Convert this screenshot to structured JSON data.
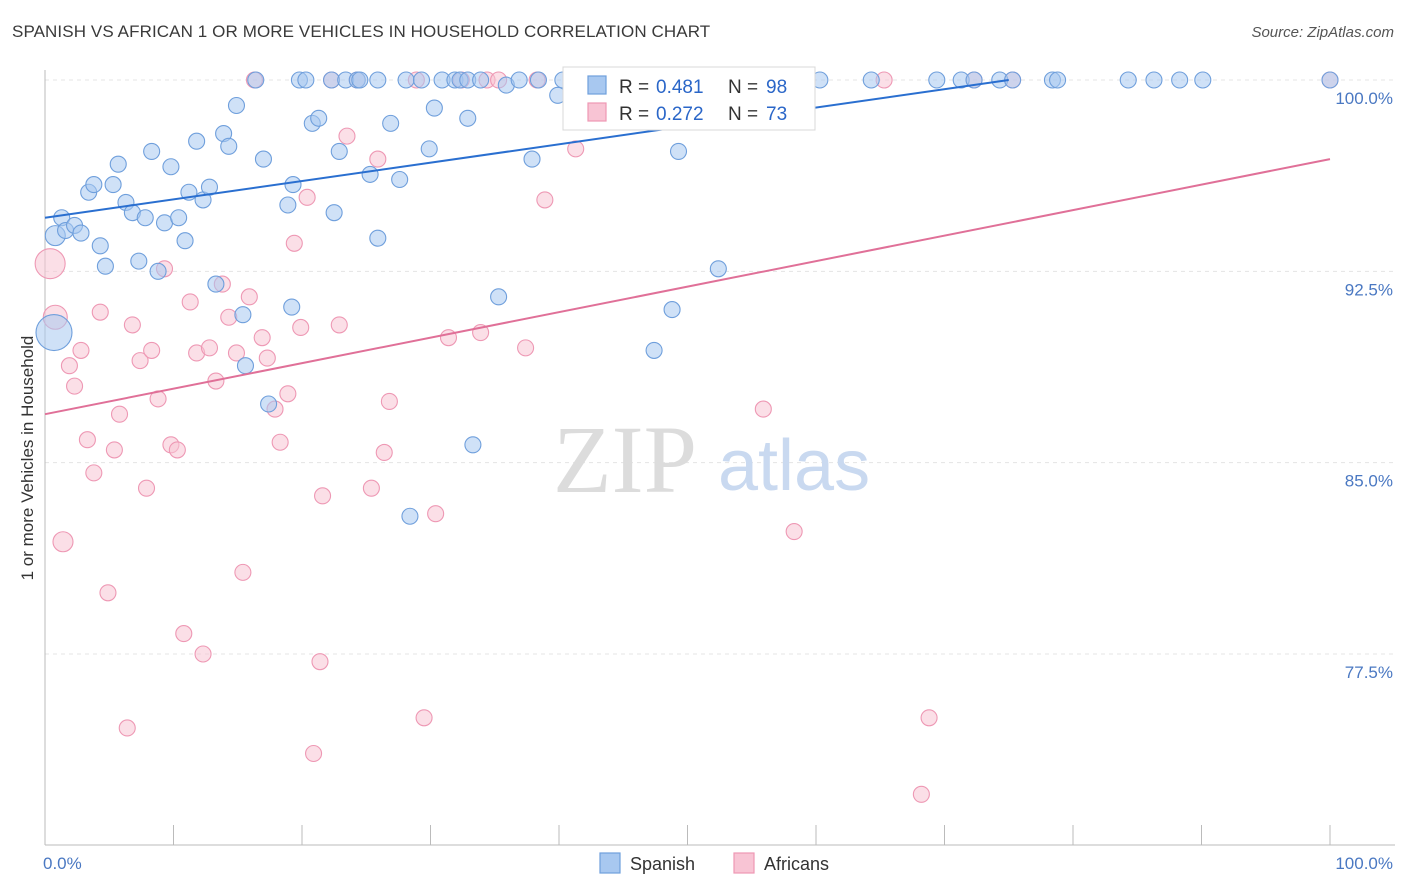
{
  "title": "SPANISH VS AFRICAN 1 OR MORE VEHICLES IN HOUSEHOLD CORRELATION CHART",
  "source": "Source: ZipAtlas.com",
  "watermark": {
    "zip": "ZIP",
    "atlas": "atlas"
  },
  "legend": {
    "spanish": {
      "r_label": "R =",
      "r_value": "0.481",
      "n_label": "N =",
      "n_value": "98"
    },
    "africans": {
      "r_label": "R =",
      "r_value": "0.272",
      "n_label": "N =",
      "n_value": "73"
    }
  },
  "bottom_legend": {
    "spanish": "Spanish",
    "africans": "Africans"
  },
  "colors": {
    "spanish_fill": "#a8c8f0",
    "spanish_stroke": "#6f9fdc",
    "spanish_line": "#2a6fd0",
    "africans_fill": "#f8c4d4",
    "africans_stroke": "#ee98b4",
    "africans_line": "#e07098",
    "grid": "#e4e4e4",
    "axis": "#bbbbbb",
    "tick_text": "#4a78c2"
  },
  "chart_data": {
    "type": "scatter",
    "title": "SPANISH VS AFRICAN 1 OR MORE VEHICLES IN HOUSEHOLD CORRELATION CHART",
    "xlabel": "",
    "ylabel": "1 or more Vehicles in Household",
    "xlim": [
      0,
      100
    ],
    "ylim": [
      70.5,
      101
    ],
    "x_tick_labels": [
      "0.0%",
      "100.0%"
    ],
    "y_ticks": [
      100,
      92.5,
      85,
      77.5
    ],
    "y_tick_labels": [
      "100.0%",
      "92.5%",
      "85.0%",
      "77.5%"
    ],
    "grid": true,
    "legend_position": "top-center",
    "series": [
      {
        "name": "Spanish",
        "r": 0.481,
        "n": 98,
        "trend": {
          "x": [
            0,
            75
          ],
          "y": [
            94.6,
            100.0
          ]
        },
        "points": [
          {
            "x": 0.7,
            "y": 90.1,
            "s": 18
          },
          {
            "x": 0.8,
            "y": 93.9,
            "s": 10
          },
          {
            "x": 1.3,
            "y": 94.6,
            "s": 8
          },
          {
            "x": 1.6,
            "y": 94.1,
            "s": 8
          },
          {
            "x": 2.3,
            "y": 94.3,
            "s": 8
          },
          {
            "x": 2.8,
            "y": 94.0,
            "s": 8
          },
          {
            "x": 3.4,
            "y": 95.6,
            "s": 8
          },
          {
            "x": 3.8,
            "y": 95.9,
            "s": 8
          },
          {
            "x": 4.3,
            "y": 93.5,
            "s": 8
          },
          {
            "x": 4.7,
            "y": 92.7,
            "s": 8
          },
          {
            "x": 5.3,
            "y": 95.9,
            "s": 8
          },
          {
            "x": 5.7,
            "y": 96.7,
            "s": 8
          },
          {
            "x": 6.3,
            "y": 95.2,
            "s": 8
          },
          {
            "x": 6.8,
            "y": 94.8,
            "s": 8
          },
          {
            "x": 7.3,
            "y": 92.9,
            "s": 8
          },
          {
            "x": 7.8,
            "y": 94.6,
            "s": 8
          },
          {
            "x": 8.3,
            "y": 97.2,
            "s": 8
          },
          {
            "x": 8.8,
            "y": 92.5,
            "s": 8
          },
          {
            "x": 9.3,
            "y": 94.4,
            "s": 8
          },
          {
            "x": 9.8,
            "y": 96.6,
            "s": 8
          },
          {
            "x": 10.4,
            "y": 94.6,
            "s": 8
          },
          {
            "x": 10.9,
            "y": 93.7,
            "s": 8
          },
          {
            "x": 11.2,
            "y": 95.6,
            "s": 8
          },
          {
            "x": 11.8,
            "y": 97.6,
            "s": 8
          },
          {
            "x": 12.3,
            "y": 95.3,
            "s": 8
          },
          {
            "x": 12.8,
            "y": 95.8,
            "s": 8
          },
          {
            "x": 13.3,
            "y": 92.0,
            "s": 8
          },
          {
            "x": 13.9,
            "y": 97.9,
            "s": 8
          },
          {
            "x": 14.3,
            "y": 97.4,
            "s": 8
          },
          {
            "x": 14.9,
            "y": 99.0,
            "s": 8
          },
          {
            "x": 15.4,
            "y": 90.8,
            "s": 8
          },
          {
            "x": 15.6,
            "y": 88.8,
            "s": 8
          },
          {
            "x": 16.4,
            "y": 100,
            "s": 8
          },
          {
            "x": 17.0,
            "y": 96.9,
            "s": 8
          },
          {
            "x": 17.4,
            "y": 87.3,
            "s": 8
          },
          {
            "x": 18.9,
            "y": 95.1,
            "s": 8
          },
          {
            "x": 19.3,
            "y": 95.9,
            "s": 8
          },
          {
            "x": 19.2,
            "y": 91.1,
            "s": 8
          },
          {
            "x": 19.8,
            "y": 100,
            "s": 8
          },
          {
            "x": 20.3,
            "y": 100,
            "s": 8
          },
          {
            "x": 20.8,
            "y": 98.3,
            "s": 8
          },
          {
            "x": 21.3,
            "y": 98.5,
            "s": 8
          },
          {
            "x": 22.3,
            "y": 100,
            "s": 8
          },
          {
            "x": 22.5,
            "y": 94.8,
            "s": 8
          },
          {
            "x": 22.9,
            "y": 97.2,
            "s": 8
          },
          {
            "x": 23.4,
            "y": 100,
            "s": 8
          },
          {
            "x": 24.3,
            "y": 100,
            "s": 8
          },
          {
            "x": 24.5,
            "y": 100,
            "s": 8
          },
          {
            "x": 25.3,
            "y": 96.3,
            "s": 8
          },
          {
            "x": 25.9,
            "y": 100,
            "s": 8
          },
          {
            "x": 25.9,
            "y": 93.8,
            "s": 8
          },
          {
            "x": 26.9,
            "y": 98.3,
            "s": 8
          },
          {
            "x": 27.6,
            "y": 96.1,
            "s": 8
          },
          {
            "x": 28.1,
            "y": 100,
            "s": 8
          },
          {
            "x": 28.4,
            "y": 82.9,
            "s": 8
          },
          {
            "x": 29.3,
            "y": 100,
            "s": 8
          },
          {
            "x": 29.9,
            "y": 97.3,
            "s": 8
          },
          {
            "x": 30.3,
            "y": 98.9,
            "s": 8
          },
          {
            "x": 30.9,
            "y": 100,
            "s": 8
          },
          {
            "x": 31.9,
            "y": 100,
            "s": 8
          },
          {
            "x": 32.3,
            "y": 100,
            "s": 8
          },
          {
            "x": 32.9,
            "y": 98.5,
            "s": 8
          },
          {
            "x": 32.9,
            "y": 100,
            "s": 8
          },
          {
            "x": 33.3,
            "y": 85.7,
            "s": 8
          },
          {
            "x": 33.9,
            "y": 100,
            "s": 8
          },
          {
            "x": 35.3,
            "y": 91.5,
            "s": 8
          },
          {
            "x": 35.9,
            "y": 99.8,
            "s": 8
          },
          {
            "x": 36.9,
            "y": 100,
            "s": 8
          },
          {
            "x": 37.9,
            "y": 96.9,
            "s": 8
          },
          {
            "x": 38.4,
            "y": 100,
            "s": 8
          },
          {
            "x": 39.9,
            "y": 99.4,
            "s": 8
          },
          {
            "x": 40.3,
            "y": 100,
            "s": 8
          },
          {
            "x": 41.9,
            "y": 100,
            "s": 8
          },
          {
            "x": 43.9,
            "y": 100,
            "s": 8
          },
          {
            "x": 46.3,
            "y": 100,
            "s": 8
          },
          {
            "x": 47.4,
            "y": 89.4,
            "s": 8
          },
          {
            "x": 48.8,
            "y": 91.0,
            "s": 8
          },
          {
            "x": 49.3,
            "y": 97.2,
            "s": 8
          },
          {
            "x": 51.3,
            "y": 100,
            "s": 8
          },
          {
            "x": 52.4,
            "y": 92.6,
            "s": 8
          },
          {
            "x": 55.3,
            "y": 100,
            "s": 8
          },
          {
            "x": 56.4,
            "y": 100,
            "s": 8
          },
          {
            "x": 60.3,
            "y": 100,
            "s": 8
          },
          {
            "x": 64.3,
            "y": 100,
            "s": 8
          },
          {
            "x": 69.4,
            "y": 100,
            "s": 8
          },
          {
            "x": 71.3,
            "y": 100,
            "s": 8
          },
          {
            "x": 72.3,
            "y": 100,
            "s": 8
          },
          {
            "x": 74.3,
            "y": 100,
            "s": 8
          },
          {
            "x": 75.3,
            "y": 100,
            "s": 8
          },
          {
            "x": 78.4,
            "y": 100,
            "s": 8
          },
          {
            "x": 78.8,
            "y": 100,
            "s": 8
          },
          {
            "x": 84.3,
            "y": 100,
            "s": 8
          },
          {
            "x": 86.3,
            "y": 100,
            "s": 8
          },
          {
            "x": 88.3,
            "y": 100,
            "s": 8
          },
          {
            "x": 90.1,
            "y": 100,
            "s": 8
          },
          {
            "x": 100,
            "y": 100,
            "s": 8
          }
        ]
      },
      {
        "name": "Africans",
        "r": 0.272,
        "n": 73,
        "trend": {
          "x": [
            0,
            100
          ],
          "y": [
            86.9,
            96.9
          ]
        },
        "points": [
          {
            "x": 0.4,
            "y": 92.8,
            "s": 15
          },
          {
            "x": 0.8,
            "y": 90.7,
            "s": 12
          },
          {
            "x": 1.4,
            "y": 81.9,
            "s": 10
          },
          {
            "x": 1.9,
            "y": 88.8,
            "s": 8
          },
          {
            "x": 2.3,
            "y": 88.0,
            "s": 8
          },
          {
            "x": 2.8,
            "y": 89.4,
            "s": 8
          },
          {
            "x": 3.3,
            "y": 85.9,
            "s": 8
          },
          {
            "x": 3.8,
            "y": 84.6,
            "s": 8
          },
          {
            "x": 4.3,
            "y": 90.9,
            "s": 8
          },
          {
            "x": 4.9,
            "y": 79.9,
            "s": 8
          },
          {
            "x": 5.4,
            "y": 85.5,
            "s": 8
          },
          {
            "x": 5.8,
            "y": 86.9,
            "s": 8
          },
          {
            "x": 6.4,
            "y": 74.6,
            "s": 8
          },
          {
            "x": 6.8,
            "y": 90.4,
            "s": 8
          },
          {
            "x": 7.4,
            "y": 89.0,
            "s": 8
          },
          {
            "x": 7.9,
            "y": 84.0,
            "s": 8
          },
          {
            "x": 8.3,
            "y": 89.4,
            "s": 8
          },
          {
            "x": 8.8,
            "y": 87.5,
            "s": 8
          },
          {
            "x": 9.3,
            "y": 92.6,
            "s": 8
          },
          {
            "x": 9.8,
            "y": 85.7,
            "s": 8
          },
          {
            "x": 10.3,
            "y": 85.5,
            "s": 8
          },
          {
            "x": 10.8,
            "y": 78.3,
            "s": 8
          },
          {
            "x": 11.3,
            "y": 91.3,
            "s": 8
          },
          {
            "x": 11.8,
            "y": 89.3,
            "s": 8
          },
          {
            "x": 12.3,
            "y": 77.5,
            "s": 8
          },
          {
            "x": 12.8,
            "y": 89.5,
            "s": 8
          },
          {
            "x": 13.3,
            "y": 88.2,
            "s": 8
          },
          {
            "x": 13.8,
            "y": 92.0,
            "s": 8
          },
          {
            "x": 14.3,
            "y": 90.7,
            "s": 8
          },
          {
            "x": 14.9,
            "y": 89.3,
            "s": 8
          },
          {
            "x": 15.4,
            "y": 80.7,
            "s": 8
          },
          {
            "x": 15.9,
            "y": 91.5,
            "s": 8
          },
          {
            "x": 16.3,
            "y": 100,
            "s": 8
          },
          {
            "x": 16.9,
            "y": 89.9,
            "s": 8
          },
          {
            "x": 17.3,
            "y": 89.1,
            "s": 8
          },
          {
            "x": 17.9,
            "y": 87.1,
            "s": 8
          },
          {
            "x": 18.3,
            "y": 85.8,
            "s": 8
          },
          {
            "x": 18.9,
            "y": 87.7,
            "s": 8
          },
          {
            "x": 19.4,
            "y": 93.6,
            "s": 8
          },
          {
            "x": 19.9,
            "y": 90.3,
            "s": 8
          },
          {
            "x": 20.4,
            "y": 95.4,
            "s": 8
          },
          {
            "x": 21.4,
            "y": 77.2,
            "s": 8
          },
          {
            "x": 21.6,
            "y": 83.7,
            "s": 8
          },
          {
            "x": 22.3,
            "y": 100,
            "s": 8
          },
          {
            "x": 22.9,
            "y": 90.4,
            "s": 8
          },
          {
            "x": 23.5,
            "y": 97.8,
            "s": 8
          },
          {
            "x": 24.3,
            "y": 100,
            "s": 8
          },
          {
            "x": 25.4,
            "y": 84.0,
            "s": 8
          },
          {
            "x": 25.9,
            "y": 96.9,
            "s": 8
          },
          {
            "x": 26.4,
            "y": 85.4,
            "s": 8
          },
          {
            "x": 26.8,
            "y": 87.4,
            "s": 8
          },
          {
            "x": 20.9,
            "y": 73.6,
            "s": 8
          },
          {
            "x": 28.9,
            "y": 100,
            "s": 8
          },
          {
            "x": 29.5,
            "y": 75.0,
            "s": 8
          },
          {
            "x": 30.4,
            "y": 83.0,
            "s": 8
          },
          {
            "x": 31.4,
            "y": 89.9,
            "s": 8
          },
          {
            "x": 32.4,
            "y": 100,
            "s": 8
          },
          {
            "x": 33.9,
            "y": 90.1,
            "s": 8
          },
          {
            "x": 34.4,
            "y": 100,
            "s": 8
          },
          {
            "x": 35.3,
            "y": 100,
            "s": 8
          },
          {
            "x": 37.4,
            "y": 89.5,
            "s": 8
          },
          {
            "x": 38.3,
            "y": 100,
            "s": 8
          },
          {
            "x": 38.9,
            "y": 95.3,
            "s": 8
          },
          {
            "x": 41.3,
            "y": 97.3,
            "s": 8
          },
          {
            "x": 55.9,
            "y": 87.1,
            "s": 8
          },
          {
            "x": 58.3,
            "y": 82.3,
            "s": 8
          },
          {
            "x": 59.3,
            "y": 100,
            "s": 8
          },
          {
            "x": 65.3,
            "y": 100,
            "s": 8
          },
          {
            "x": 68.2,
            "y": 72.0,
            "s": 8
          },
          {
            "x": 68.8,
            "y": 75.0,
            "s": 8
          },
          {
            "x": 72.3,
            "y": 100,
            "s": 8
          },
          {
            "x": 75.3,
            "y": 100,
            "s": 8
          },
          {
            "x": 100,
            "y": 100,
            "s": 8
          }
        ]
      }
    ]
  }
}
